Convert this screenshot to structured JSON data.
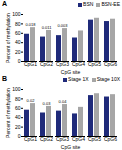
{
  "chart_data": [
    {
      "type": "bar",
      "title": "A",
      "x_label": "CpG site",
      "y_label": "Percent of methylation",
      "categories": [
        "CpG1",
        "CpG2",
        "CpG3",
        "CpG4",
        "CpG5",
        "CpG6"
      ],
      "series": [
        {
          "name": "BSN",
          "color": "#1f2a7a",
          "values": [
            58,
            52,
            55,
            50,
            88,
            85
          ]
        },
        {
          "name": "BSN-EE",
          "color": "#a6a6a6",
          "values": [
            72,
            66,
            70,
            65,
            92,
            90
          ]
        }
      ],
      "annotations": [
        {
          "category": "CpG1",
          "text": "0.018"
        },
        {
          "category": "CpG2",
          "text": "0.011"
        },
        {
          "category": "CpG3",
          "text": "0.003"
        }
      ],
      "ylim": [
        0,
        100
      ],
      "yticks": [
        0,
        20,
        40,
        60,
        80,
        100
      ],
      "legend": "top-right"
    },
    {
      "type": "bar",
      "title": "B",
      "x_label": "CpG site",
      "y_label": "Percent of methylation",
      "categories": [
        "CpG1",
        "CpG2",
        "CpG3",
        "CpG4",
        "CpG5",
        "CpG6"
      ],
      "series": [
        {
          "name": "Stage 1X",
          "color": "#1f2a7a",
          "values": [
            56,
            50,
            54,
            48,
            87,
            84
          ]
        },
        {
          "name": "Stage 10X",
          "color": "#a6a6a6",
          "values": [
            70,
            64,
            68,
            62,
            91,
            89
          ]
        }
      ],
      "annotations": [
        {
          "category": "CpG1",
          "text": "0.02"
        },
        {
          "category": "CpG2",
          "text": "0.03"
        },
        {
          "category": "CpG3",
          "text": "0.04"
        }
      ],
      "ylim": [
        0,
        100
      ],
      "yticks": [
        0,
        20,
        40,
        60,
        80,
        100
      ],
      "legend": "top-right"
    }
  ]
}
